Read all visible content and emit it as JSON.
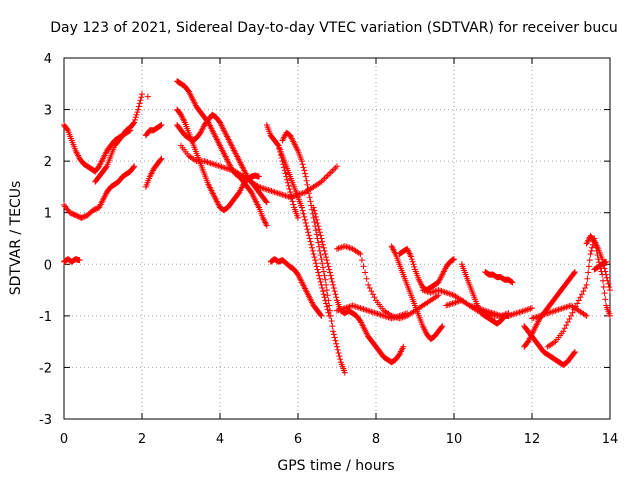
{
  "chart_data": {
    "type": "scatter",
    "title": "Day 123 of 2021, Sidereal Day-to-day VTEC variation (SDTVAR) for receiver bucu",
    "xlabel": "GPS time / hours",
    "ylabel": "SDTVAR / TECUs",
    "xlim": [
      0,
      14
    ],
    "ylim": [
      -3,
      4
    ],
    "xticks": [
      "0",
      "2",
      "4",
      "6",
      "8",
      "10",
      "12",
      "14"
    ],
    "yticks": [
      "-3",
      "-2",
      "-1",
      "0",
      "1",
      "2",
      "3",
      "4"
    ],
    "grid": true,
    "marker": "+",
    "color": "#ff0000",
    "series": [
      {
        "name": "trace-a",
        "x": [
          0.0,
          0.1,
          0.2,
          0.3,
          0.4,
          0.5,
          0.6,
          0.7,
          0.8,
          0.9,
          1.0,
          1.1,
          1.2,
          1.3,
          1.4,
          1.5,
          1.6,
          1.7,
          1.8,
          1.9,
          2.0
        ],
        "y": [
          2.7,
          2.6,
          2.4,
          2.2,
          2.05,
          1.95,
          1.9,
          1.85,
          1.8,
          1.9,
          2.05,
          2.2,
          2.3,
          2.4,
          2.45,
          2.5,
          2.6,
          2.65,
          2.75,
          3.0,
          3.3
        ]
      },
      {
        "name": "trace-b",
        "x": [
          0.0,
          0.15,
          0.3,
          0.45,
          0.6,
          0.75,
          0.9,
          1.0,
          1.1,
          1.2,
          1.3,
          1.4,
          1.5,
          1.6,
          1.7,
          1.8
        ],
        "y": [
          1.15,
          1.0,
          0.95,
          0.9,
          0.95,
          1.05,
          1.1,
          1.25,
          1.4,
          1.5,
          1.55,
          1.6,
          1.7,
          1.75,
          1.8,
          1.9
        ]
      },
      {
        "name": "trace-c",
        "x": [
          0.0,
          0.1,
          0.2,
          0.3,
          0.4
        ],
        "y": [
          0.05,
          0.1,
          0.05,
          0.1,
          0.08
        ]
      },
      {
        "name": "trace-d",
        "x": [
          0.8,
          0.9,
          1.0,
          1.1,
          1.2,
          1.3,
          1.4,
          1.5,
          1.6,
          1.7
        ],
        "y": [
          1.6,
          1.7,
          1.8,
          1.9,
          2.1,
          2.3,
          2.4,
          2.5,
          2.55,
          2.6
        ]
      },
      {
        "name": "trace-e",
        "x": [
          2.1,
          2.2,
          2.3,
          2.4,
          2.5
        ],
        "y": [
          2.5,
          2.6,
          2.6,
          2.65,
          2.7
        ]
      },
      {
        "name": "trace-f",
        "x": [
          2.1,
          2.2,
          2.3,
          2.4,
          2.5
        ],
        "y": [
          1.5,
          1.7,
          1.85,
          1.95,
          2.05
        ]
      },
      {
        "name": "trace-g",
        "x": [
          2.9,
          3.0,
          3.1,
          3.2,
          3.3,
          3.4,
          3.5,
          3.6,
          3.7,
          3.8,
          3.9,
          4.0,
          4.1,
          4.2,
          4.3,
          4.4,
          4.5,
          4.6,
          4.7,
          4.8,
          4.9,
          5.0,
          5.1,
          5.2
        ],
        "y": [
          3.55,
          3.5,
          3.45,
          3.35,
          3.2,
          3.05,
          2.95,
          2.85,
          2.75,
          2.6,
          2.45,
          2.3,
          2.15,
          2.0,
          1.85,
          1.75,
          1.7,
          1.6,
          1.5,
          1.4,
          1.25,
          1.1,
          0.9,
          0.75
        ]
      },
      {
        "name": "trace-h",
        "x": [
          2.9,
          3.0,
          3.1,
          3.2,
          3.3,
          3.4,
          3.5,
          3.6,
          3.7,
          3.8,
          3.9,
          4.0,
          4.1,
          4.2,
          4.3,
          4.4,
          4.5,
          4.6,
          4.7,
          4.8,
          4.9,
          5.0
        ],
        "y": [
          3.0,
          2.9,
          2.75,
          2.55,
          2.35,
          2.15,
          1.95,
          1.75,
          1.55,
          1.4,
          1.25,
          1.1,
          1.05,
          1.1,
          1.2,
          1.3,
          1.4,
          1.55,
          1.65,
          1.7,
          1.72,
          1.7
        ]
      },
      {
        "name": "trace-i",
        "x": [
          2.9,
          3.0,
          3.1,
          3.2,
          3.3,
          3.4,
          3.5,
          3.6,
          3.7,
          3.8,
          3.9,
          4.0,
          4.1,
          4.2,
          4.3,
          4.4,
          4.5,
          4.6,
          4.7,
          4.8,
          4.9,
          5.0,
          5.1,
          5.2
        ],
        "y": [
          2.7,
          2.6,
          2.5,
          2.45,
          2.4,
          2.45,
          2.55,
          2.7,
          2.8,
          2.9,
          2.85,
          2.75,
          2.6,
          2.45,
          2.3,
          2.15,
          2.0,
          1.85,
          1.7,
          1.6,
          1.5,
          1.4,
          1.3,
          1.2
        ]
      },
      {
        "name": "trace-j",
        "x": [
          3.0,
          3.2,
          3.4,
          3.6,
          3.8,
          4.0,
          4.2,
          4.4,
          4.6,
          4.8,
          5.0,
          5.2,
          5.4,
          5.6,
          5.8,
          6.0,
          6.2,
          6.4,
          6.6,
          6.8,
          7.0
        ],
        "y": [
          2.3,
          2.1,
          2.0,
          2.0,
          1.95,
          1.9,
          1.85,
          1.8,
          1.7,
          1.6,
          1.5,
          1.45,
          1.4,
          1.35,
          1.3,
          1.35,
          1.4,
          1.5,
          1.6,
          1.75,
          1.9
        ]
      },
      {
        "name": "trace-k",
        "x": [
          5.6,
          5.7,
          5.8,
          5.9,
          6.0,
          6.1,
          6.2,
          6.3,
          6.4,
          6.5,
          6.6,
          6.7,
          6.8,
          6.9,
          7.0,
          7.1,
          7.2
        ],
        "y": [
          2.4,
          2.55,
          2.5,
          2.35,
          2.2,
          2.0,
          1.7,
          1.3,
          0.9,
          0.5,
          0.1,
          -0.3,
          -0.8,
          -1.3,
          -1.6,
          -1.9,
          -2.1
        ]
      },
      {
        "name": "trace-l",
        "x": [
          5.5,
          5.6,
          5.7,
          5.8,
          5.9,
          6.0,
          6.1,
          6.2,
          6.3,
          6.4,
          6.5,
          6.6,
          6.7,
          6.8
        ],
        "y": [
          2.3,
          2.1,
          1.9,
          1.7,
          1.5,
          1.3,
          1.1,
          0.8,
          0.5,
          0.2,
          -0.1,
          -0.4,
          -0.7,
          -1.0
        ]
      },
      {
        "name": "trace-m",
        "x": [
          5.2,
          5.3,
          5.4,
          5.5,
          5.6,
          5.7,
          5.8,
          5.9,
          6.0
        ],
        "y": [
          2.7,
          2.5,
          2.4,
          2.3,
          2.0,
          1.7,
          1.4,
          1.1,
          0.9
        ]
      },
      {
        "name": "trace-n",
        "x": [
          5.3,
          5.4,
          5.5,
          5.6,
          5.7,
          5.8,
          5.9,
          6.0,
          6.1,
          6.2,
          6.3,
          6.4,
          6.5,
          6.6
        ],
        "y": [
          0.05,
          0.1,
          0.05,
          0.08,
          0.02,
          -0.05,
          -0.1,
          -0.2,
          -0.35,
          -0.5,
          -0.65,
          -0.8,
          -0.9,
          -1.0
        ]
      },
      {
        "name": "trace-o",
        "x": [
          6.4,
          6.5,
          6.6,
          6.7,
          6.8,
          6.9,
          7.0,
          7.1,
          7.2,
          7.3,
          7.4,
          7.5,
          7.6,
          7.7,
          7.8,
          7.9,
          8.0,
          8.1,
          8.2,
          8.3,
          8.4,
          8.5,
          8.6,
          8.7
        ],
        "y": [
          1.1,
          0.8,
          0.5,
          0.2,
          -0.1,
          -0.4,
          -0.7,
          -0.9,
          -0.95,
          -0.9,
          -0.95,
          -1.0,
          -1.1,
          -1.25,
          -1.4,
          -1.5,
          -1.6,
          -1.7,
          -1.8,
          -1.85,
          -1.9,
          -1.85,
          -1.75,
          -1.6
        ]
      },
      {
        "name": "trace-p",
        "x": [
          7.0,
          7.2,
          7.4,
          7.6,
          7.8,
          8.0,
          8.2,
          8.4,
          8.6,
          8.8,
          9.0,
          9.2,
          9.4,
          9.6
        ],
        "y": [
          0.3,
          0.35,
          0.3,
          0.2,
          -0.4,
          -0.7,
          -0.9,
          -1.0,
          -1.05,
          -1.0,
          -0.9,
          -0.8,
          -0.7,
          -0.6
        ]
      },
      {
        "name": "trace-q",
        "x": [
          7.0,
          7.2,
          7.4,
          7.6,
          7.8,
          8.0,
          8.2,
          8.4,
          8.6,
          8.8
        ],
        "y": [
          -0.9,
          -0.85,
          -0.8,
          -0.85,
          -0.9,
          -0.95,
          -1.0,
          -1.05,
          -1.0,
          -0.95
        ]
      },
      {
        "name": "trace-r",
        "x": [
          8.4,
          8.5,
          8.6,
          8.7,
          8.8,
          8.9,
          9.0,
          9.1,
          9.2,
          9.3,
          9.4,
          9.5,
          9.6,
          9.7
        ],
        "y": [
          0.35,
          0.2,
          0.0,
          -0.2,
          -0.4,
          -0.6,
          -0.8,
          -1.0,
          -1.2,
          -1.35,
          -1.45,
          -1.4,
          -1.3,
          -1.2
        ]
      },
      {
        "name": "trace-s",
        "x": [
          8.6,
          8.7,
          8.8,
          8.9,
          9.0,
          9.1,
          9.2,
          9.3,
          9.4,
          9.5,
          9.6,
          9.7,
          9.8,
          9.9,
          10.0
        ],
        "y": [
          0.2,
          0.25,
          0.3,
          0.15,
          -0.1,
          -0.3,
          -0.45,
          -0.5,
          -0.45,
          -0.4,
          -0.35,
          -0.2,
          -0.05,
          0.05,
          0.1
        ]
      },
      {
        "name": "trace-t",
        "x": [
          9.2,
          9.4,
          9.6,
          9.8,
          10.0,
          10.2,
          10.4,
          10.6,
          10.8,
          11.0,
          11.2,
          11.4
        ],
        "y": [
          -0.5,
          -0.55,
          -0.5,
          -0.55,
          -0.6,
          -0.7,
          -0.8,
          -0.9,
          -0.95,
          -1.0,
          -1.0,
          -0.95
        ]
      },
      {
        "name": "trace-u",
        "x": [
          10.2,
          10.3,
          10.4,
          10.5,
          10.6,
          10.7,
          10.8,
          10.9,
          11.0,
          11.1,
          11.2,
          11.3,
          11.4
        ],
        "y": [
          0.0,
          -0.2,
          -0.4,
          -0.6,
          -0.8,
          -0.95,
          -1.0,
          -1.05,
          -1.1,
          -1.15,
          -1.1,
          -1.0,
          -1.0
        ]
      },
      {
        "name": "trace-v",
        "x": [
          10.8,
          10.9,
          11.0,
          11.1,
          11.2,
          11.3,
          11.4,
          11.5
        ],
        "y": [
          -0.15,
          -0.2,
          -0.2,
          -0.25,
          -0.25,
          -0.3,
          -0.3,
          -0.35
        ]
      },
      {
        "name": "trace-w",
        "x": [
          9.8,
          10.0,
          10.2,
          10.4,
          10.6,
          10.8,
          11.0,
          11.2,
          11.4,
          11.6,
          11.8,
          12.0
        ],
        "y": [
          -0.8,
          -0.75,
          -0.7,
          -0.8,
          -0.85,
          -0.9,
          -0.95,
          -1.0,
          -1.0,
          -0.95,
          -0.9,
          -0.85
        ]
      },
      {
        "name": "trace-x",
        "x": [
          11.8,
          11.9,
          12.0,
          12.1,
          12.2,
          12.3,
          12.4,
          12.5,
          12.6,
          12.7,
          12.8,
          12.9,
          13.0,
          13.1
        ],
        "y": [
          -1.6,
          -1.5,
          -1.35,
          -1.2,
          -1.05,
          -0.95,
          -0.85,
          -0.75,
          -0.65,
          -0.55,
          -0.45,
          -0.35,
          -0.25,
          -0.15
        ]
      },
      {
        "name": "trace-y",
        "x": [
          11.8,
          11.9,
          12.0,
          12.1,
          12.2,
          12.3,
          12.4,
          12.5,
          12.6,
          12.7,
          12.8,
          12.9,
          13.0,
          13.1
        ],
        "y": [
          -1.2,
          -1.3,
          -1.4,
          -1.5,
          -1.6,
          -1.7,
          -1.75,
          -1.8,
          -1.85,
          -1.9,
          -1.95,
          -1.9,
          -1.8,
          -1.7
        ]
      },
      {
        "name": "trace-z",
        "x": [
          12.0,
          12.2,
          12.4,
          12.6,
          12.8,
          13.0,
          13.2,
          13.4
        ],
        "y": [
          -1.05,
          -1.0,
          -0.95,
          -0.9,
          -0.85,
          -0.8,
          -0.9,
          -1.0
        ]
      },
      {
        "name": "trace-aa",
        "x": [
          12.4,
          12.6,
          12.8,
          13.0,
          13.2,
          13.4,
          13.5,
          13.6,
          13.7,
          13.8,
          13.9,
          14.0
        ],
        "y": [
          -1.6,
          -1.5,
          -1.3,
          -1.0,
          -0.7,
          -0.4,
          0.2,
          0.5,
          0.1,
          -0.2,
          -0.8,
          -1.0
        ]
      },
      {
        "name": "trace-ab",
        "x": [
          13.4,
          13.5,
          13.6,
          13.7,
          13.8,
          13.9,
          14.0
        ],
        "y": [
          0.4,
          0.55,
          0.45,
          0.3,
          0.1,
          -0.2,
          -0.5
        ]
      },
      {
        "name": "trace-ac",
        "x": [
          13.6,
          13.7,
          13.8,
          13.9
        ],
        "y": [
          -0.1,
          -0.05,
          0.0,
          0.05
        ]
      }
    ],
    "outliers": [
      {
        "x": 2.15,
        "y": 3.25
      }
    ]
  }
}
